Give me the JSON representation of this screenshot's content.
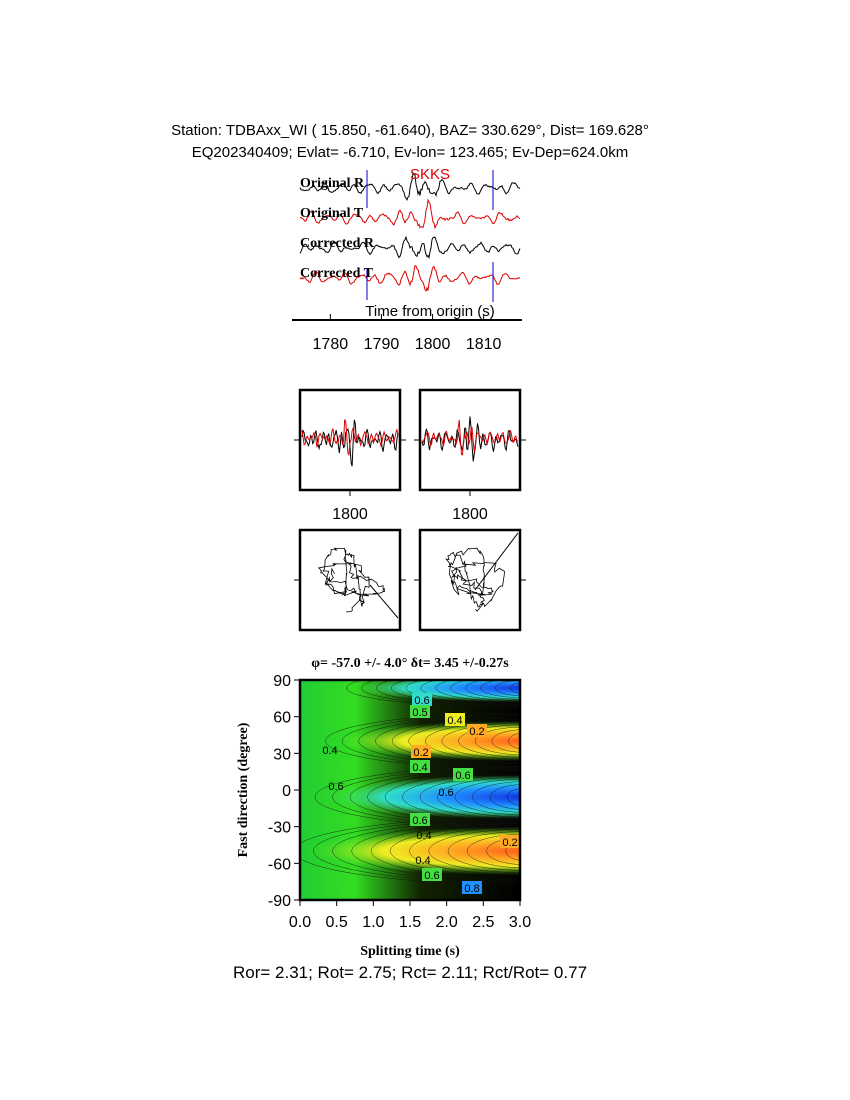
{
  "header": {
    "station": "Station: TDBAxx_WI (  15.850,  -61.640), BAZ=  330.629°, Dist=  169.628°",
    "event": "EQ202340409; Evlat=  -6.710, Ev-lon= 123.465; Ev-Dep=624.0km"
  },
  "chart_data": [
    {
      "type": "waveform",
      "phase": "SKKS",
      "traces": [
        "Original R",
        "Original T",
        "Corrected R",
        "Corrected T"
      ],
      "xlabel": "Time from origin (s)",
      "xlim": [
        1772.5,
        1817.5
      ],
      "xticks": [
        1780,
        1790,
        1800,
        1810
      ]
    },
    {
      "type": "waveform",
      "xlim": [
        1790,
        1810
      ],
      "xticks": [
        1800
      ]
    },
    {
      "type": "waveform",
      "xlim": [
        1790,
        1810
      ],
      "xticks": [
        1800
      ]
    },
    {
      "type": "contour",
      "title": "φ= -57.0 +/- 4.0° δt= 3.45 +/-0.27s",
      "xlabel": "Splitting time (s)",
      "ylabel": "Fast direction (degree)",
      "xlim": [
        0,
        3
      ],
      "ylim": [
        -90,
        90
      ],
      "xticks": [
        {
          "value": 0,
          "label": "0.0"
        },
        0.5,
        {
          "value": 1,
          "label": "1.0"
        },
        1.5,
        {
          "value": 2,
          "label": "2.0"
        },
        2.5,
        {
          "value": 3,
          "label": "3.0"
        }
      ],
      "yticks": [
        -90,
        -60,
        -30,
        0,
        30,
        60,
        90
      ],
      "contour_labels": [
        0.6,
        0.5,
        0.4,
        0.2,
        0.4,
        0.2,
        0.4,
        0.6,
        0.6,
        0.6,
        0.6,
        0.4,
        0.2,
        0.4,
        0.6,
        0.8
      ]
    }
  ],
  "footer": "Ror= 2.31; Rot= 2.75; Rct= 2.11; Rct/Rot= 0.77"
}
